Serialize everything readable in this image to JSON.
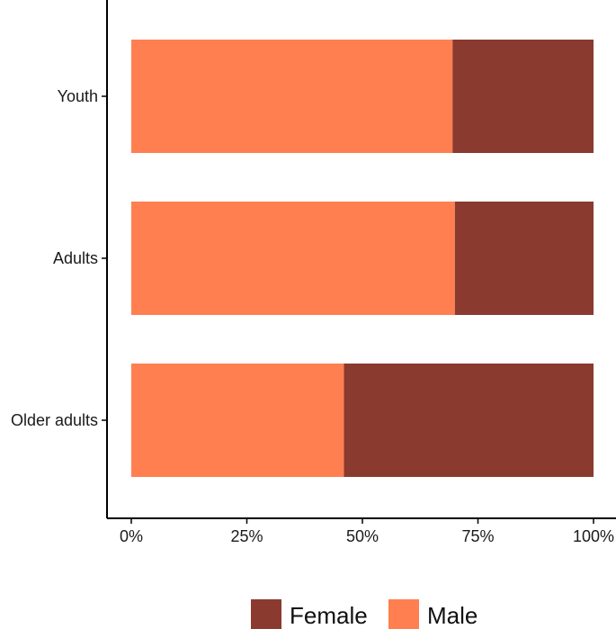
{
  "chart_data": {
    "type": "bar",
    "orientation": "horizontal",
    "stacked": true,
    "categories": [
      "Youth",
      "Adults",
      "Older adults"
    ],
    "series": [
      {
        "name": "Male",
        "color": "#FF7F50",
        "values": [
          69.5,
          70.0,
          46.0
        ]
      },
      {
        "name": "Female",
        "color": "#8B3A2F",
        "values": [
          30.5,
          30.0,
          54.0
        ]
      }
    ],
    "xlim": [
      0,
      100
    ],
    "x_ticks": [
      0,
      25,
      50,
      75,
      100
    ],
    "x_tick_labels": [
      "0%",
      "25%",
      "50%",
      "75%",
      "100%"
    ],
    "title": "",
    "xlabel": "",
    "ylabel": "",
    "grid": false,
    "legend": {
      "position": "bottom",
      "entries": [
        {
          "label": "Female",
          "color": "#8B3A2F"
        },
        {
          "label": "Male",
          "color": "#FF7F50"
        }
      ]
    }
  }
}
